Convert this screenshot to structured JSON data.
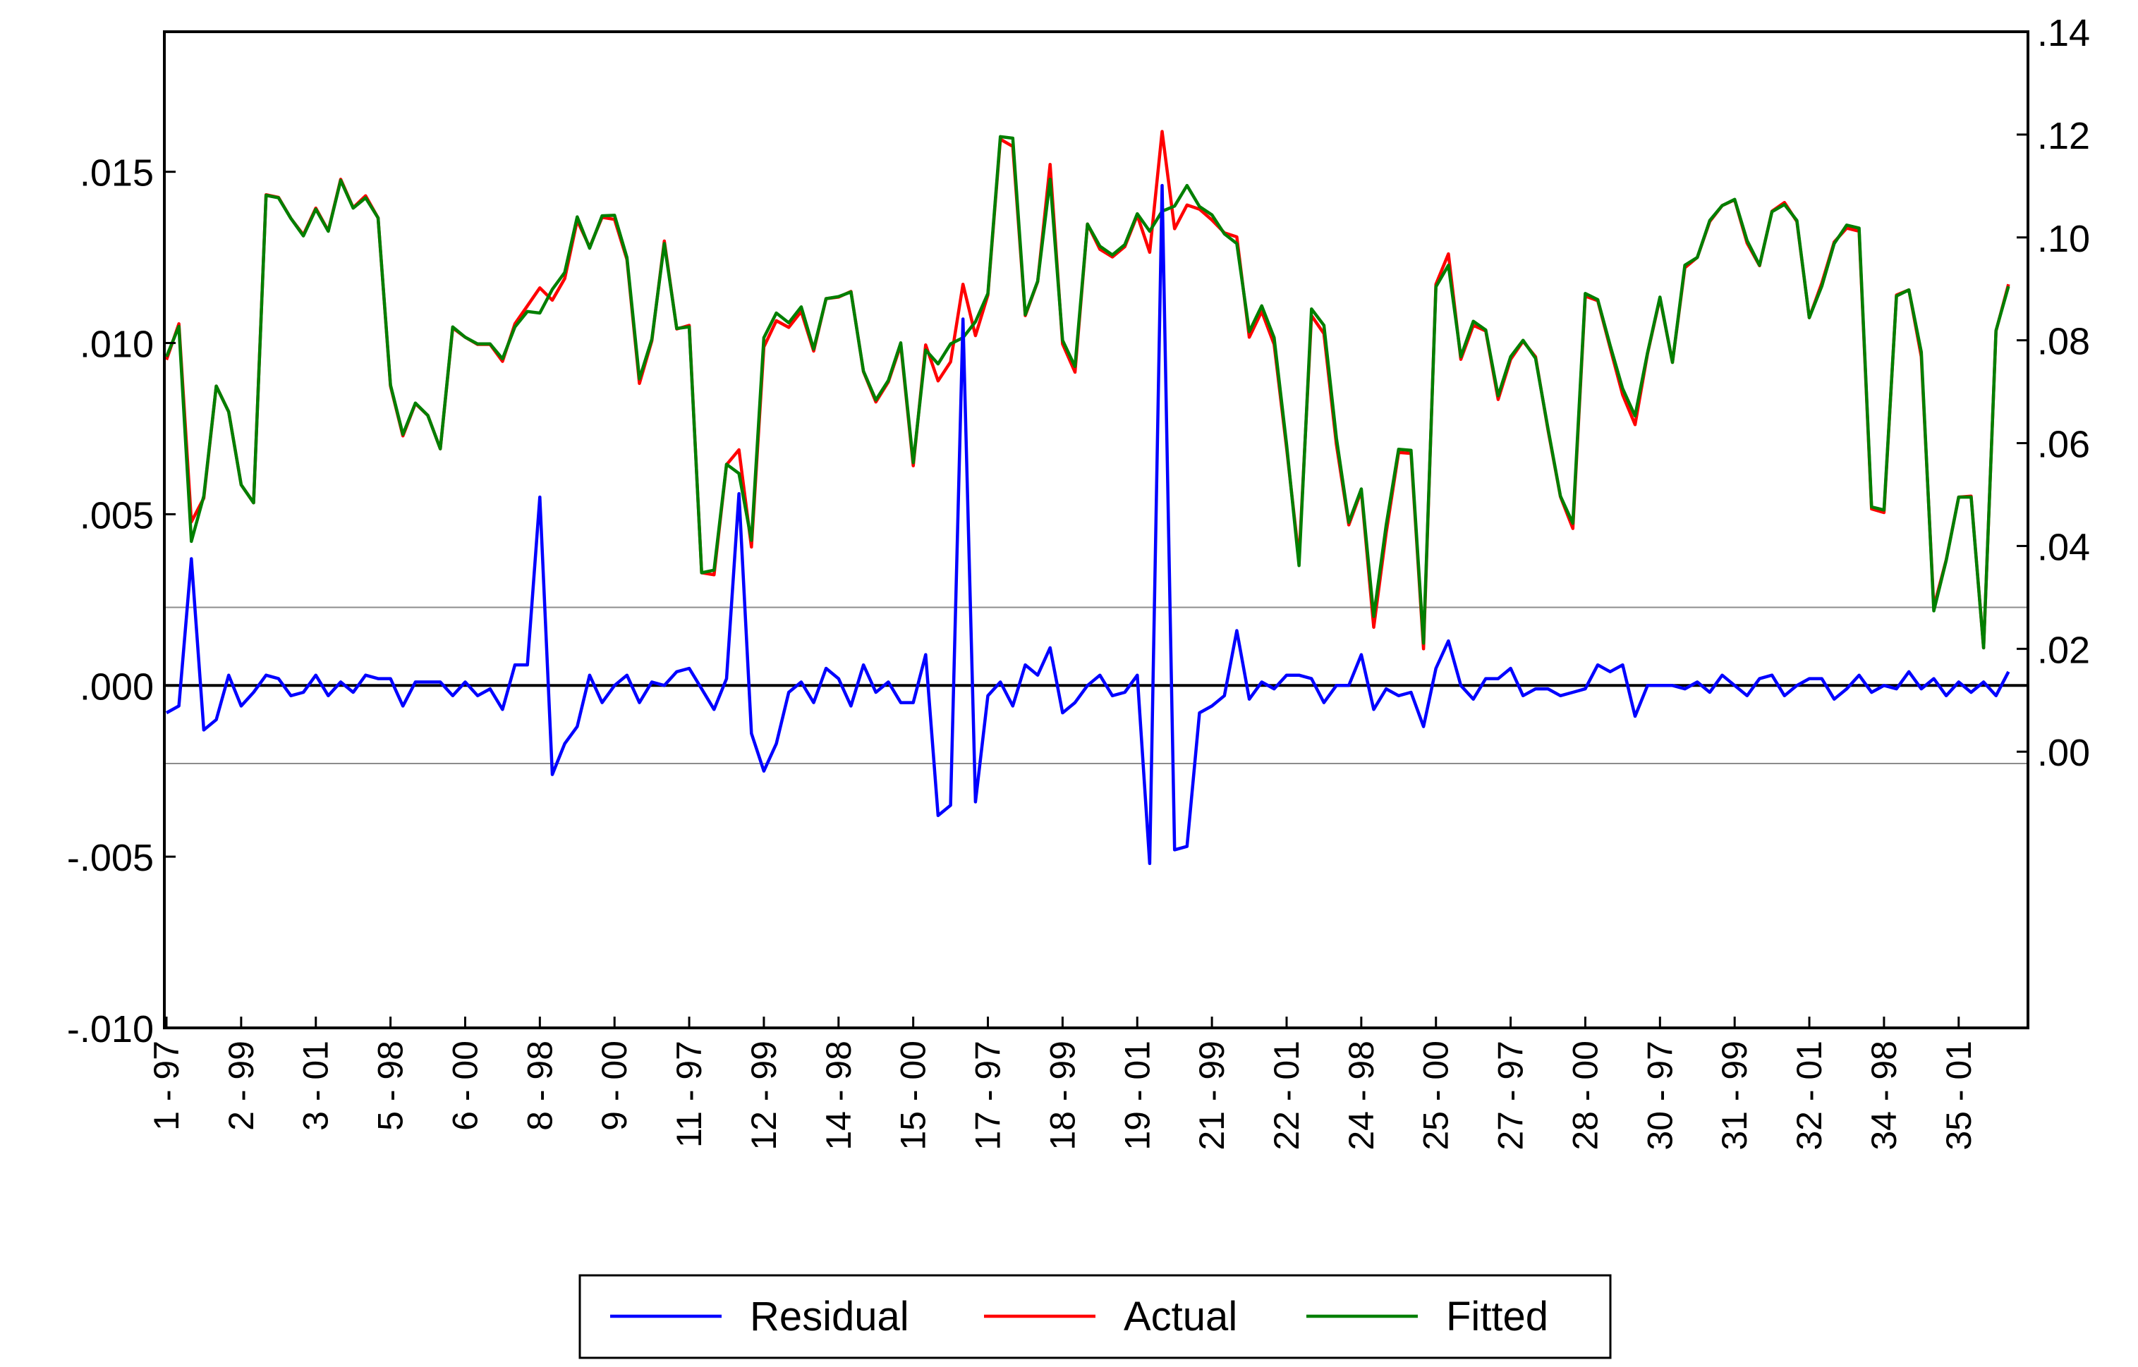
{
  "chart_data": {
    "type": "line",
    "left_axis": {
      "ticks": [
        ".015",
        ".010",
        ".005",
        ".000",
        "-.005",
        "-.010"
      ],
      "tick_values": [
        0.015,
        0.01,
        0.005,
        0.0,
        -0.005,
        -0.01
      ],
      "range": [
        -0.01,
        0.01909
      ]
    },
    "right_axis": {
      "ticks": [
        ".14",
        ".12",
        ".10",
        ".08",
        ".06",
        ".04",
        ".02",
        ".00"
      ],
      "tick_values": [
        0.14,
        0.12,
        0.1,
        0.08,
        0.06,
        0.04,
        0.02,
        0.0
      ],
      "range": [
        -0.05371,
        0.14
      ]
    },
    "x_tick_labels": [
      "1 - 97",
      "2 - 99",
      "3 - 01",
      "5 - 98",
      "6 - 00",
      "8 - 98",
      "9 - 00",
      "11 - 97",
      "12 - 99",
      "14 - 98",
      "15 - 00",
      "17 - 97",
      "18 - 99",
      "19 - 01",
      "21 - 99",
      "22 - 01",
      "24 - 98",
      "25 - 00",
      "27 - 97",
      "28 - 00",
      "30 - 97",
      "31 - 99",
      "32 - 01",
      "34 - 98",
      "35 - 01"
    ],
    "x_tick_index": [
      0,
      6,
      12,
      18,
      24,
      30,
      36,
      42,
      48,
      54,
      60,
      66,
      72,
      78,
      84,
      90,
      96,
      102,
      108,
      114,
      120,
      126,
      132,
      138,
      144
    ],
    "n_points": 150,
    "reference_lines": {
      "zero": 0.0,
      "std_band": [
        0.00228,
        -0.00228
      ]
    },
    "grid": false,
    "legend": {
      "position": "bottom-center"
    },
    "series": [
      {
        "name": "Residual",
        "axis": "left",
        "color": "#0000ff",
        "values": [
          -0.0008,
          -0.0006,
          0.0037,
          -0.0013,
          -0.001,
          0.0003,
          -0.0006,
          -0.0002,
          0.0003,
          0.0002,
          -0.0003,
          -0.0002,
          0.0003,
          -0.0003,
          0.0001,
          -0.0002,
          0.0003,
          0.0002,
          0.0002,
          -0.0006,
          0.0001,
          0.0001,
          0.0001,
          -0.0003,
          0.0001,
          -0.0003,
          -0.0001,
          -0.0007,
          0.0006,
          0.0006,
          0.0055,
          -0.0026,
          -0.0017,
          -0.0012,
          0.0003,
          -0.0005,
          0.0,
          0.0003,
          -0.0005,
          0.0001,
          0.0,
          0.0004,
          0.0005,
          -0.0001,
          -0.0007,
          0.0002,
          0.0056,
          -0.0014,
          -0.0025,
          -0.0017,
          -0.0002,
          0.0001,
          -0.0005,
          0.0005,
          0.0002,
          -0.0006,
          0.0006,
          -0.0002,
          0.0001,
          -0.0005,
          -0.0005,
          0.0009,
          -0.0038,
          -0.0035,
          0.0107,
          -0.0034,
          -0.0003,
          0.0001,
          -0.0006,
          0.0006,
          0.0003,
          0.0011,
          -0.0008,
          -0.0005,
          0.0,
          0.0003,
          -0.0003,
          -0.0002,
          0.0003,
          -0.0052,
          0.0146,
          -0.0048,
          -0.0047,
          -0.0008,
          -0.0006,
          -0.0003,
          0.0016,
          -0.0004,
          0.0001,
          -0.0001,
          0.0003,
          0.0003,
          0.0002,
          -0.0005,
          0.0,
          0.0,
          0.0009,
          -0.0007,
          -0.0001,
          -0.0003,
          -0.0002,
          -0.0012,
          0.0005,
          0.0013,
          0.0,
          -0.0004,
          0.0002,
          0.0002,
          0.0005,
          -0.0003,
          -0.0001,
          -0.0001,
          -0.0003,
          -0.0002,
          -0.0001,
          0.0006,
          0.0004,
          0.0006,
          -0.0009,
          0.0,
          0.0,
          0.0,
          -0.0001,
          0.0001,
          -0.0002,
          0.0003,
          0.0,
          -0.0003,
          0.0002,
          0.0003,
          -0.0003,
          0.0,
          0.0002,
          0.0002,
          -0.0004,
          -0.0001,
          0.0003,
          -0.0002,
          0.0,
          -0.0001,
          0.0004,
          -0.0001,
          0.0002,
          -0.0003,
          0.0001,
          -0.0002,
          0.0001,
          -0.0003,
          0.0004
        ]
      },
      {
        "name": "Actual",
        "axis": "right",
        "color": "#ff0000",
        "values": [
          0.0762,
          0.0832,
          0.0447,
          0.0493,
          0.0711,
          0.0661,
          0.0519,
          0.0484,
          0.1083,
          0.1078,
          0.1037,
          0.1005,
          0.1057,
          0.1013,
          0.1113,
          0.1058,
          0.1081,
          0.1038,
          0.0711,
          0.0614,
          0.0677,
          0.0654,
          0.0589,
          0.0824,
          0.0806,
          0.0792,
          0.0792,
          0.0759,
          0.0832,
          0.0867,
          0.0902,
          0.0878,
          0.092,
          0.1033,
          0.0981,
          0.1039,
          0.1035,
          0.0957,
          0.0716,
          0.0799,
          0.0993,
          0.0822,
          0.0829,
          0.0348,
          0.0344,
          0.0558,
          0.0587,
          0.0398,
          0.0787,
          0.0838,
          0.0825,
          0.0856,
          0.0779,
          0.0881,
          0.0884,
          0.0895,
          0.0739,
          0.068,
          0.0719,
          0.0791,
          0.0556,
          0.0791,
          0.0721,
          0.0758,
          0.0909,
          0.0809,
          0.0888,
          0.1191,
          0.1177,
          0.0848,
          0.0914,
          0.1142,
          0.0793,
          0.0738,
          0.1026,
          0.0977,
          0.0962,
          0.0982,
          0.1043,
          0.0971,
          0.1206,
          0.1017,
          0.1063,
          0.1055,
          0.1034,
          0.1009,
          0.1001,
          0.0806,
          0.0856,
          0.0792,
          0.059,
          0.0375,
          0.0848,
          0.0813,
          0.0597,
          0.0441,
          0.0507,
          0.0242,
          0.0425,
          0.0582,
          0.058,
          0.02,
          0.0909,
          0.0968,
          0.0763,
          0.0829,
          0.0818,
          0.0685,
          0.0763,
          0.0798,
          0.0768,
          0.0626,
          0.0496,
          0.0434,
          0.0886,
          0.0877,
          0.0785,
          0.0694,
          0.0636,
          0.0774,
          0.0882,
          0.0757,
          0.0941,
          0.0961,
          0.1031,
          0.1062,
          0.1073,
          0.0989,
          0.0945,
          0.1051,
          0.1068,
          0.1031,
          0.0844,
          0.0911,
          0.0991,
          0.1018,
          0.1012,
          0.0472,
          0.0465,
          0.0888,
          0.0898,
          0.0768,
          0.0281,
          0.0373,
          0.0495,
          0.0497,
          0.0202,
          0.0818,
          0.0909
        ]
      },
      {
        "name": "Fitted",
        "axis": "right",
        "color": "#007f00",
        "values": [
          0.0768,
          0.0827,
          0.0409,
          0.0497,
          0.0711,
          0.0661,
          0.0519,
          0.0484,
          0.1082,
          0.1077,
          0.1037,
          0.1003,
          0.1055,
          0.1012,
          0.1111,
          0.1057,
          0.1077,
          0.1038,
          0.0713,
          0.0617,
          0.0678,
          0.0654,
          0.0589,
          0.0826,
          0.0806,
          0.0793,
          0.0793,
          0.0764,
          0.0826,
          0.0856,
          0.0853,
          0.0899,
          0.0932,
          0.104,
          0.0979,
          0.1042,
          0.1043,
          0.0961,
          0.0725,
          0.0802,
          0.0988,
          0.0823,
          0.0826,
          0.0348,
          0.0353,
          0.0559,
          0.0541,
          0.0411,
          0.0805,
          0.0853,
          0.0834,
          0.0865,
          0.0783,
          0.0881,
          0.0885,
          0.0894,
          0.074,
          0.0684,
          0.0722,
          0.0795,
          0.0562,
          0.0781,
          0.0754,
          0.0793,
          0.0805,
          0.0836,
          0.0891,
          0.1196,
          0.1193,
          0.085,
          0.0915,
          0.1113,
          0.08,
          0.0749,
          0.1026,
          0.0983,
          0.0966,
          0.0986,
          0.1046,
          0.1012,
          0.1051,
          0.1061,
          0.1101,
          0.106,
          0.1044,
          0.1007,
          0.0988,
          0.0817,
          0.0867,
          0.0805,
          0.0597,
          0.0362,
          0.0861,
          0.0829,
          0.061,
          0.0446,
          0.0511,
          0.0263,
          0.044,
          0.0588,
          0.0586,
          0.0211,
          0.0904,
          0.0946,
          0.0768,
          0.0837,
          0.082,
          0.0692,
          0.0768,
          0.08,
          0.0765,
          0.0629,
          0.0497,
          0.0444,
          0.0891,
          0.0879,
          0.079,
          0.0706,
          0.0653,
          0.0776,
          0.0884,
          0.0757,
          0.0946,
          0.0961,
          0.1033,
          0.1062,
          0.1074,
          0.0994,
          0.0946,
          0.105,
          0.1064,
          0.1033,
          0.0844,
          0.0905,
          0.0988,
          0.1024,
          0.1018,
          0.0476,
          0.047,
          0.0886,
          0.0898,
          0.0777,
          0.0274,
          0.0372,
          0.0495,
          0.0495,
          0.0202,
          0.0819,
          0.0905
        ]
      }
    ]
  }
}
